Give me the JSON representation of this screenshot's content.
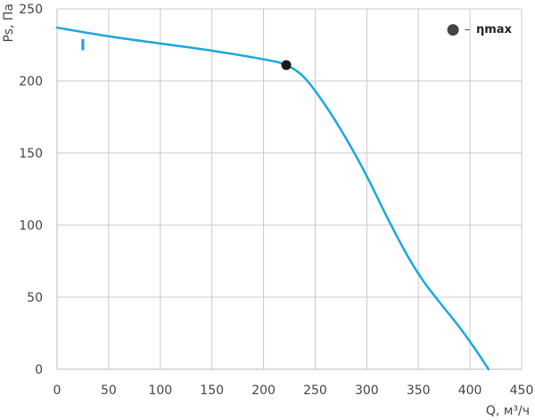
{
  "chart_data": {
    "type": "line",
    "xlabel": "Q, м³/ч",
    "ylabel": "Ps, Па",
    "xlim": [
      0,
      450
    ],
    "ylim": [
      0,
      250
    ],
    "xticks": [
      0,
      50,
      100,
      150,
      200,
      250,
      300,
      350,
      400,
      450
    ],
    "yticks": [
      0,
      50,
      100,
      150,
      200,
      250
    ],
    "grid": true,
    "series": [
      {
        "name": "I",
        "color": "#1aa7e0",
        "x": [
          0,
          50,
          100,
          150,
          200,
          222,
          240,
          260,
          280,
          300,
          320,
          340,
          355,
          370,
          390,
          405,
          418
        ],
        "y": [
          237,
          231,
          226,
          221,
          215,
          211,
          202,
          183,
          160,
          134,
          105,
          78,
          61,
          47,
          29,
          14,
          0
        ]
      }
    ],
    "markers": [
      {
        "label": "ηmax",
        "x": 222,
        "y": 211,
        "color": "#1a1a1a"
      }
    ],
    "legend": {
      "symbol": "●",
      "dash": "–",
      "label": "ηmax",
      "placement": "top-right"
    },
    "series_label": {
      "text": "I",
      "x": 25,
      "y": 225
    }
  }
}
